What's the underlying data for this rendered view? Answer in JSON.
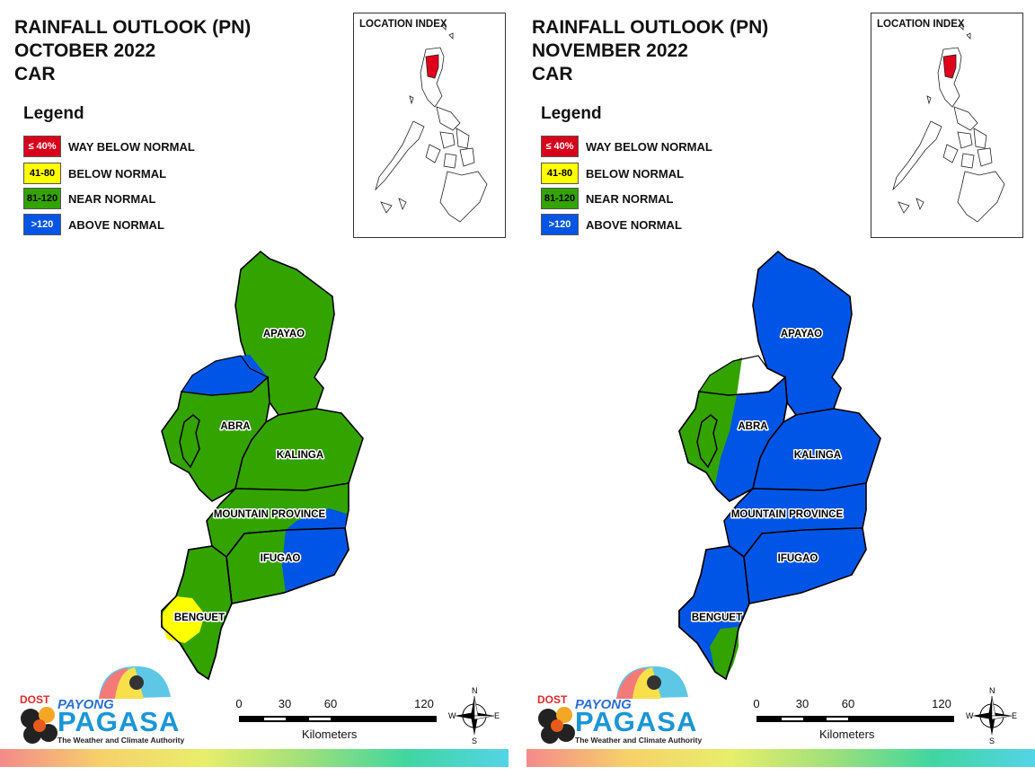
{
  "panels": [
    {
      "title": [
        "RAINFALL OUTLOOK (PN)",
        "OCTOBER 2022",
        "CAR"
      ],
      "legend_title": "Legend",
      "legend": [
        {
          "code": "≤ 40%",
          "label": "WAY BELOW NORMAL",
          "color": "#d9001a",
          "text_color": "#ffffff"
        },
        {
          "code": "41-80",
          "label": "BELOW NORMAL",
          "color": "#ffff00",
          "text_color": "#000000"
        },
        {
          "code": "81-120",
          "label": "NEAR NORMAL",
          "color": "#33a300",
          "text_color": "#000000"
        },
        {
          "code": ">120",
          "label": "ABOVE NORMAL",
          "color": "#0055e6",
          "text_color": "#ffffff"
        }
      ],
      "location_index_title": "LOCATION INDEX",
      "provinces": [
        "APAYAO",
        "ABRA",
        "KALINGA",
        "MOUNTAIN PROVINCE",
        "IFUGAO",
        "BENGUET"
      ],
      "scale_labels": [
        "0",
        "30",
        "60",
        "120"
      ],
      "scale_unit": "Kilometers",
      "compass": [
        "N",
        "E",
        "S",
        "W"
      ],
      "logo": {
        "dost": "DOST",
        "payong": "PAYONG",
        "pagasa": "PAGASA",
        "tagline": "The Weather and Climate Authority"
      }
    },
    {
      "title": [
        "RAINFALL OUTLOOK (PN)",
        "NOVEMBER 2022",
        "CAR"
      ],
      "legend_title": "Legend",
      "legend": [
        {
          "code": "≤ 40%",
          "label": "WAY BELOW NORMAL",
          "color": "#d9001a",
          "text_color": "#ffffff"
        },
        {
          "code": "41-80",
          "label": "BELOW NORMAL",
          "color": "#ffff00",
          "text_color": "#000000"
        },
        {
          "code": "81-120",
          "label": "NEAR NORMAL",
          "color": "#33a300",
          "text_color": "#000000"
        },
        {
          "code": ">120",
          "label": "ABOVE NORMAL",
          "color": "#0055e6",
          "text_color": "#ffffff"
        }
      ],
      "location_index_title": "LOCATION INDEX",
      "provinces": [
        "APAYAO",
        "ABRA",
        "KALINGA",
        "MOUNTAIN PROVINCE",
        "IFUGAO",
        "BENGUET"
      ],
      "scale_labels": [
        "0",
        "30",
        "60",
        "120"
      ],
      "scale_unit": "Kilometers",
      "compass": [
        "N",
        "E",
        "S",
        "W"
      ],
      "logo": {
        "dost": "DOST",
        "payong": "PAYONG",
        "pagasa": "PAGASA",
        "tagline": "The Weather and Climate Authority"
      }
    }
  ],
  "colors": {
    "near_normal": "#33a300",
    "above_normal": "#0055e6",
    "below_normal": "#ffff00",
    "way_below_normal": "#d9001a"
  }
}
